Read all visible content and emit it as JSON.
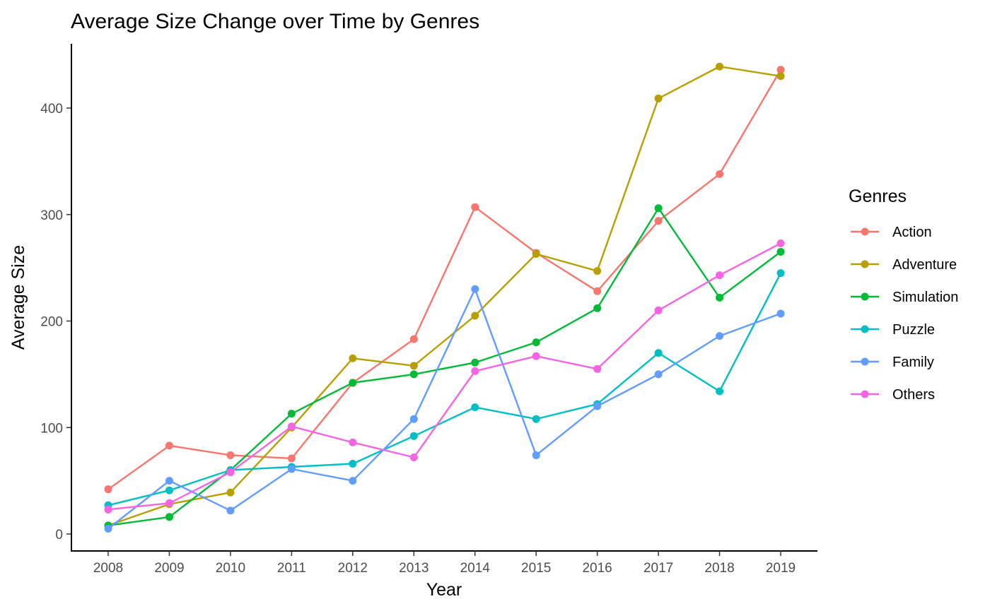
{
  "chart_data": {
    "type": "line",
    "title": "Average Size Change over Time by Genres",
    "xlabel": "Year",
    "ylabel": "Average Size",
    "x": [
      2008,
      2009,
      2010,
      2011,
      2012,
      2013,
      2014,
      2015,
      2016,
      2017,
      2018,
      2019
    ],
    "x_ticks": [
      "2008",
      "2009",
      "2010",
      "2011",
      "2012",
      "2013",
      "2014",
      "2015",
      "2016",
      "2017",
      "2018",
      "2019"
    ],
    "y_ticks": [
      0,
      100,
      200,
      300,
      400
    ],
    "ylim": [
      -15,
      460
    ],
    "grid": false,
    "legend_title": "Genres",
    "legend_position": "right",
    "series": [
      {
        "name": "Action",
        "color": "#F8766D",
        "values": [
          42,
          83,
          74,
          71,
          142,
          183,
          307,
          264,
          228,
          294,
          338,
          436
        ]
      },
      {
        "name": "Adventure",
        "color": "#B79F00",
        "values": [
          8,
          28,
          39,
          100,
          165,
          158,
          205,
          263,
          247,
          409,
          439,
          430
        ]
      },
      {
        "name": "Simulation",
        "color": "#00BA38",
        "values": [
          8,
          16,
          60,
          113,
          142,
          150,
          161,
          180,
          212,
          306,
          222,
          265
        ]
      },
      {
        "name": "Puzzle",
        "color": "#00BFC4",
        "values": [
          27,
          41,
          60,
          63,
          66,
          92,
          119,
          108,
          122,
          170,
          134,
          245
        ]
      },
      {
        "name": "Family",
        "color": "#619CFF",
        "values": [
          5,
          50,
          22,
          61,
          50,
          108,
          230,
          74,
          120,
          150,
          186,
          207
        ]
      },
      {
        "name": "Others",
        "color": "#F564E3",
        "values": [
          23,
          29,
          58,
          101,
          86,
          72,
          153,
          167,
          155,
          210,
          243,
          273
        ]
      }
    ]
  }
}
